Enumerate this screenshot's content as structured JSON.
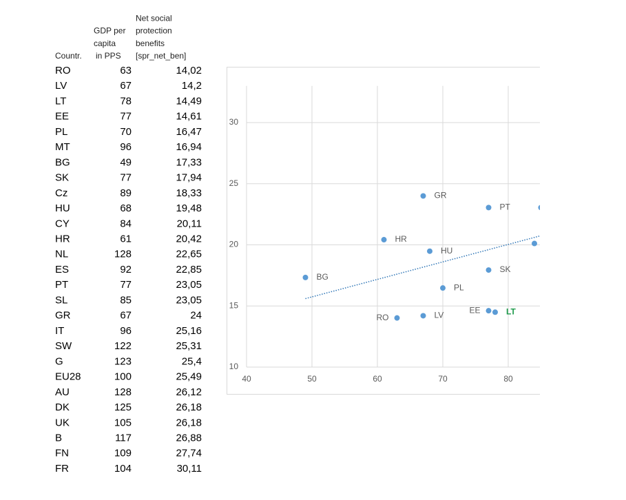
{
  "table": {
    "header": [
      [
        "Countr."
      ],
      [
        "GDP per",
        "capita",
        "in PPS"
      ],
      [
        "Net social",
        "protection",
        "benefits",
        "[spr_net_ben]"
      ]
    ],
    "rows": [
      [
        "RO",
        "63",
        "14,02"
      ],
      [
        "LV",
        "67",
        "14,2"
      ],
      [
        "LT",
        "78",
        "14,49"
      ],
      [
        "EE",
        "77",
        "14,61"
      ],
      [
        "PL",
        "70",
        "16,47"
      ],
      [
        "MT",
        "96",
        "16,94"
      ],
      [
        "BG",
        "49",
        "17,33"
      ],
      [
        "SK",
        "77",
        "17,94"
      ],
      [
        "Cz",
        "89",
        "18,33"
      ],
      [
        "HU",
        "68",
        "19,48"
      ],
      [
        "CY",
        "84",
        "20,11"
      ],
      [
        "HR",
        "61",
        "20,42"
      ],
      [
        "NL",
        "128",
        "22,65"
      ],
      [
        "ES",
        "92",
        "22,85"
      ],
      [
        "PT",
        "77",
        "23,05"
      ],
      [
        "SL",
        "85",
        "23,05"
      ],
      [
        "GR",
        "67",
        "24"
      ],
      [
        "IT",
        "96",
        "25,16"
      ],
      [
        "SW",
        "122",
        "25,31"
      ],
      [
        "G",
        "123",
        "25,4"
      ],
      [
        "EU28",
        "100",
        "25,49"
      ],
      [
        "AU",
        "128",
        "26,12"
      ],
      [
        "DK",
        "125",
        "26,18"
      ],
      [
        "UK",
        "105",
        "26,18"
      ],
      [
        "B",
        "117",
        "26,88"
      ],
      [
        "FN",
        "109",
        "27,74"
      ],
      [
        "FR",
        "104",
        "30,11"
      ]
    ]
  },
  "chart_data": {
    "type": "scatter",
    "x": [
      63,
      67,
      78,
      77,
      70,
      49,
      77,
      68,
      84,
      61,
      77,
      85,
      67
    ],
    "values": [
      14.02,
      14.2,
      14.49,
      14.61,
      16.47,
      17.33,
      17.94,
      19.48,
      20.11,
      20.42,
      23.05,
      23.05,
      24
    ],
    "labels": [
      "RO",
      "LV",
      "LT",
      "EE",
      "PL",
      "BG",
      "SK",
      "HU",
      null,
      "HR",
      "PT",
      null,
      "GR"
    ],
    "label_colors": [
      "#595959",
      "#595959",
      "#1e9b4b",
      "#595959",
      "#595959",
      "#595959",
      "#595959",
      "#595959",
      null,
      "#595959",
      "#595959",
      null,
      "#595959"
    ],
    "color": "#5b9bd5",
    "trendline": {
      "x": [
        49,
        85
      ],
      "values": [
        15.6,
        20.75
      ],
      "color": "#2e75b6"
    },
    "xlim": [
      40,
      85
    ],
    "ylim": [
      10,
      33
    ],
    "xticks": [
      40,
      50,
      60,
      70,
      80
    ],
    "yticks": [
      10,
      15,
      20,
      25,
      30
    ],
    "grid": true
  }
}
